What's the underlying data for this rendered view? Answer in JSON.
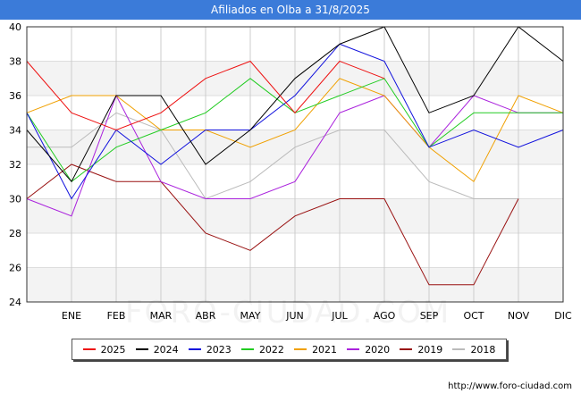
{
  "title": "Afiliados en Olba a 31/8/2025",
  "footer": "http://www.foro-ciudad.com",
  "watermark": "FORO-CIUDAD.COM",
  "chart_data": {
    "type": "line",
    "title": "Afiliados en Olba a 31/8/2025",
    "xlabel": "",
    "ylabel": "",
    "categories": [
      "",
      "ENE",
      "FEB",
      "MAR",
      "ABR",
      "MAY",
      "JUN",
      "JUL",
      "AGO",
      "SEP",
      "OCT",
      "NOV",
      "DIC"
    ],
    "ylim": [
      24,
      40
    ],
    "yticks": [
      24,
      26,
      28,
      30,
      32,
      34,
      36,
      38,
      40
    ],
    "grid": true,
    "legend_position": "bottom",
    "series": [
      {
        "name": "2025",
        "color": "#ee1111",
        "values": [
          38,
          35,
          34,
          35,
          37,
          38,
          35,
          38,
          37,
          null,
          null,
          null,
          null
        ]
      },
      {
        "name": "2024",
        "color": "#000000",
        "values": [
          34,
          31,
          36,
          36,
          32,
          34,
          37,
          39,
          40,
          35,
          36,
          40,
          38
        ]
      },
      {
        "name": "2023",
        "color": "#1111dd",
        "values": [
          35,
          30,
          34,
          32,
          34,
          34,
          36,
          39,
          38,
          33,
          34,
          33,
          34
        ]
      },
      {
        "name": "2022",
        "color": "#22cc22",
        "values": [
          35,
          31,
          33,
          34,
          35,
          37,
          35,
          36,
          37,
          33,
          35,
          35,
          35
        ]
      },
      {
        "name": "2021",
        "color": "#f0a000",
        "values": [
          35,
          36,
          36,
          34,
          34,
          33,
          34,
          37,
          36,
          33,
          31,
          36,
          35
        ]
      },
      {
        "name": "2020",
        "color": "#aa22dd",
        "values": [
          30,
          29,
          36,
          31,
          30,
          30,
          31,
          35,
          36,
          33,
          36,
          35,
          35
        ]
      },
      {
        "name": "2019",
        "color": "#991111",
        "values": [
          30,
          32,
          31,
          31,
          28,
          27,
          29,
          30,
          30,
          25,
          25,
          30,
          null
        ]
      },
      {
        "name": "2018",
        "color": "#bbbbbb",
        "values": [
          33,
          33,
          35,
          34,
          30,
          31,
          33,
          34,
          34,
          31,
          30,
          30,
          null
        ]
      }
    ]
  }
}
